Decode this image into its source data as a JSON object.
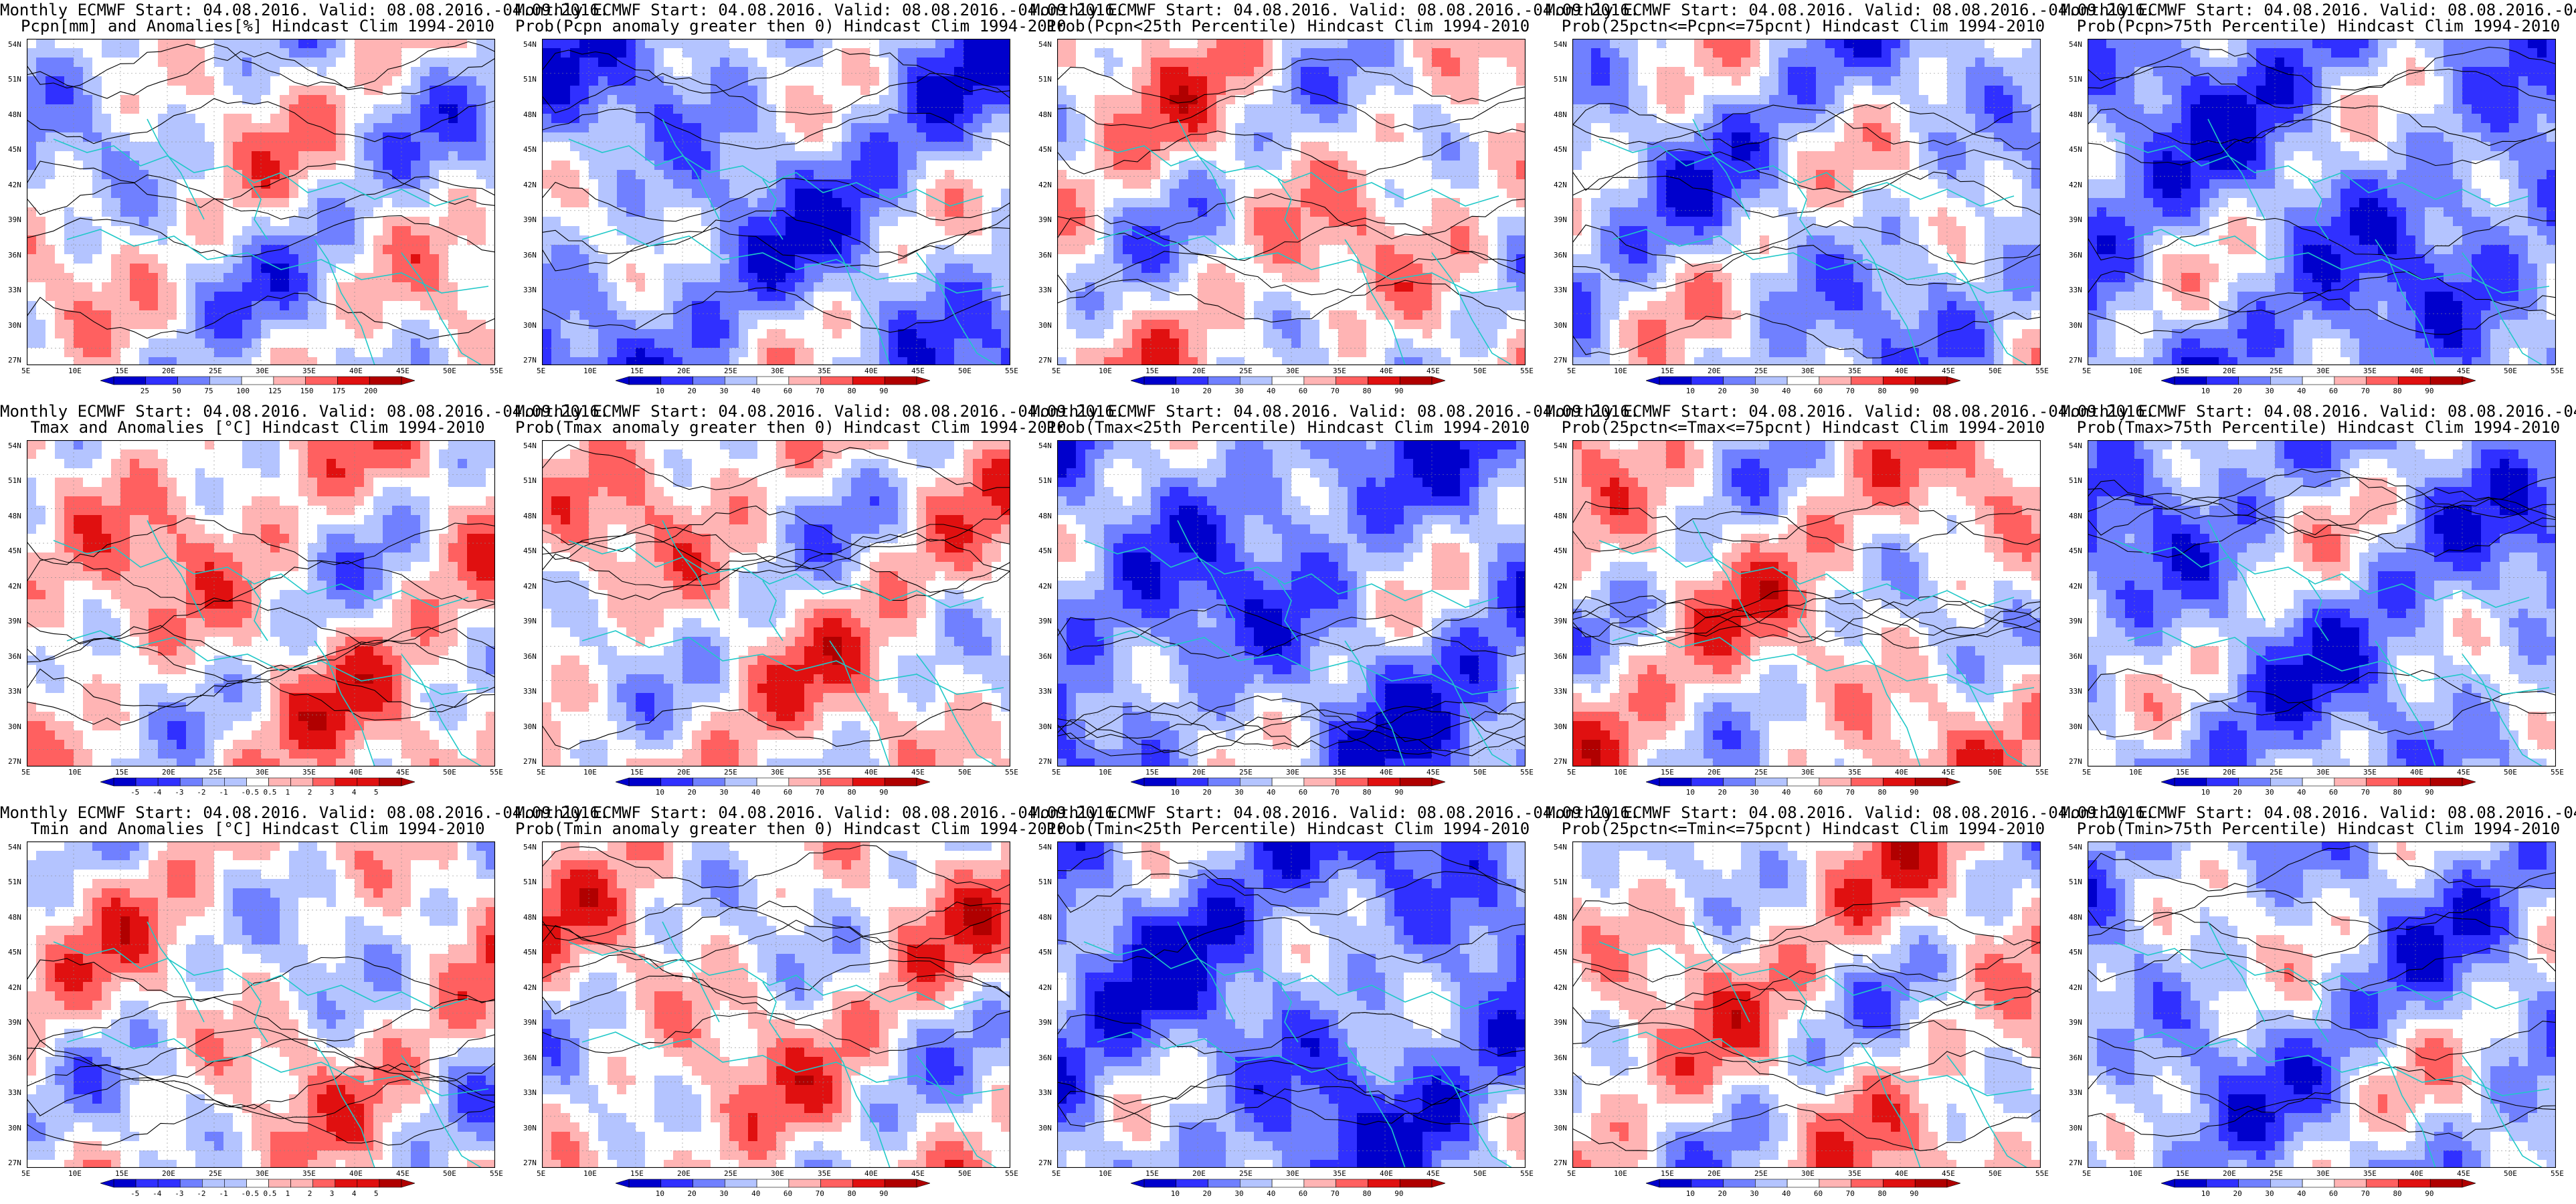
{
  "common": {
    "title_line1": "Monthly ECMWF Start: 04.08.2016. Valid: 08.08.2016.-04.09.2016.",
    "lat_labels": [
      "54N",
      "51N",
      "48N",
      "45N",
      "42N",
      "39N",
      "36N",
      "33N",
      "30N",
      "27N"
    ],
    "lon_labels": [
      "5E",
      "10E",
      "15E",
      "20E",
      "25E",
      "30E",
      "35E",
      "40E",
      "45E",
      "50E",
      "55E"
    ]
  },
  "colors": {
    "blue_dark": "#0000cc",
    "blue_light": "#b4c4ff",
    "red_light": "#ffb4b4",
    "red_dark": "#b00000",
    "white": "#ffffff",
    "coast": "#20c8c8",
    "contour": "#000000"
  },
  "panels": [
    {
      "subtitle": "Pcpn[mm] and Anomalies[%] Hindcast Clim 1994-2010",
      "colorbar": [
        "25",
        "50",
        "75",
        "100",
        "125",
        "150",
        "175",
        "200"
      ],
      "bias": -0.1,
      "seed": 3
    },
    {
      "subtitle": "Prob(Pcpn anomaly greater then 0) Hindcast Clim 1994-2010",
      "colorbar": [
        "10",
        "20",
        "30",
        "40",
        "60",
        "70",
        "80",
        "90"
      ],
      "bias": -0.45,
      "seed": 5
    },
    {
      "subtitle": "Prob(Pcpn<25th Percentile) Hindcast Clim 1994-2010",
      "colorbar": [
        "10",
        "20",
        "30",
        "40",
        "60",
        "70",
        "80",
        "90"
      ],
      "bias": 0.05,
      "seed": 7
    },
    {
      "subtitle": "Prob(25pctn<=Pcpn<=75pcnt) Hindcast Clim 1994-2010",
      "colorbar": [
        "10",
        "20",
        "30",
        "40",
        "60",
        "70",
        "80",
        "90"
      ],
      "bias": -0.3,
      "seed": 9
    },
    {
      "subtitle": "Prob(Pcpn>75th Percentile) Hindcast Clim 1994-2010",
      "colorbar": [
        "10",
        "20",
        "30",
        "40",
        "60",
        "70",
        "80",
        "90"
      ],
      "bias": -0.55,
      "seed": 11
    },
    {
      "subtitle": "Tmax and Anomalies [°C] Hindcast Clim 1994-2010",
      "colorbar": [
        "-5",
        "-4",
        "-3",
        "-2",
        "-1",
        "-0.5",
        "0.5",
        "1",
        "2",
        "3",
        "4",
        "5"
      ],
      "bias": 0.15,
      "seed": 13
    },
    {
      "subtitle": "Prob(Tmax anomaly greater then 0) Hindcast Clim 1994-2010",
      "colorbar": [
        "10",
        "20",
        "30",
        "40",
        "60",
        "70",
        "80",
        "90"
      ],
      "bias": 0.1,
      "seed": 15
    },
    {
      "subtitle": "Prob(Tmax<25th Percentile) Hindcast Clim 1994-2010",
      "colorbar": [
        "10",
        "20",
        "30",
        "40",
        "60",
        "70",
        "80",
        "90"
      ],
      "bias": -0.55,
      "seed": 17
    },
    {
      "subtitle": "Prob(25pctn<=Tmax<=75pcnt) Hindcast Clim 1994-2010",
      "colorbar": [
        "10",
        "20",
        "30",
        "40",
        "60",
        "70",
        "80",
        "90"
      ],
      "bias": 0.1,
      "seed": 19
    },
    {
      "subtitle": "Prob(Tmax>75th Percentile) Hindcast Clim 1994-2010",
      "colorbar": [
        "10",
        "20",
        "30",
        "40",
        "60",
        "70",
        "80",
        "90"
      ],
      "bias": -0.45,
      "seed": 21
    },
    {
      "subtitle": "Tmin and Anomalies [°C] Hindcast Clim 1994-2010",
      "colorbar": [
        "-5",
        "-4",
        "-3",
        "-2",
        "-1",
        "-0.5",
        "0.5",
        "1",
        "2",
        "3",
        "4",
        "5"
      ],
      "bias": 0.05,
      "seed": 23
    },
    {
      "subtitle": "Prob(Tmin anomaly greater then 0) Hindcast Clim 1994-2010",
      "colorbar": [
        "10",
        "20",
        "30",
        "40",
        "60",
        "70",
        "80",
        "90"
      ],
      "bias": 0.1,
      "seed": 25
    },
    {
      "subtitle": "Prob(Tmin<25th Percentile) Hindcast Clim 1994-2010",
      "colorbar": [
        "10",
        "20",
        "30",
        "40",
        "60",
        "70",
        "80",
        "90"
      ],
      "bias": -0.6,
      "seed": 27
    },
    {
      "subtitle": "Prob(25pctn<=Tmin<=75pcnt) Hindcast Clim 1994-2010",
      "colorbar": [
        "10",
        "20",
        "30",
        "40",
        "60",
        "70",
        "80",
        "90"
      ],
      "bias": 0.1,
      "seed": 29
    },
    {
      "subtitle": "Prob(Tmin>75th Percentile) Hindcast Clim 1994-2010",
      "colorbar": [
        "10",
        "20",
        "30",
        "40",
        "60",
        "70",
        "80",
        "90"
      ],
      "bias": -0.35,
      "seed": 31
    }
  ]
}
